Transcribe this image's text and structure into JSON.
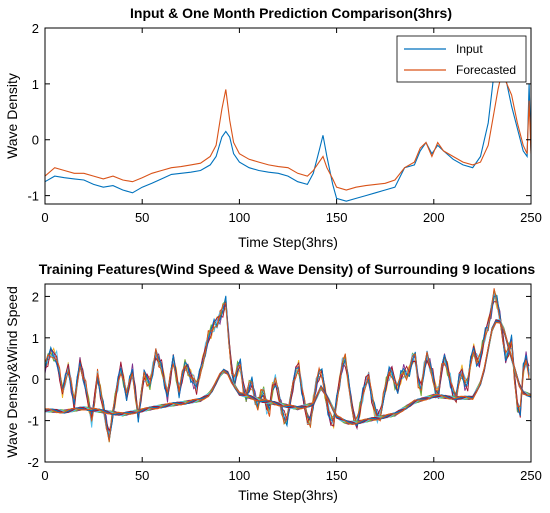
{
  "chart_data": [
    {
      "type": "line",
      "title": "Input & One Month Prediction Comparison(3hrs)",
      "xlabel": "Time Step(3hrs)",
      "ylabel": "Wave Density",
      "xlim": [
        0,
        250
      ],
      "ylim": [
        -1.15,
        2
      ],
      "xticks": [
        0,
        50,
        100,
        150,
        200,
        250
      ],
      "yticks": [
        -1,
        0,
        1,
        2
      ],
      "grid": false,
      "legend_position": "top-right",
      "series": [
        {
          "name": "Input",
          "color": "#0072BD",
          "points": [
            [
              0,
              -0.75
            ],
            [
              5,
              -0.65
            ],
            [
              10,
              -0.68
            ],
            [
              15,
              -0.7
            ],
            [
              20,
              -0.72
            ],
            [
              25,
              -0.8
            ],
            [
              30,
              -0.85
            ],
            [
              35,
              -0.82
            ],
            [
              40,
              -0.9
            ],
            [
              45,
              -0.95
            ],
            [
              50,
              -0.85
            ],
            [
              55,
              -0.78
            ],
            [
              60,
              -0.7
            ],
            [
              65,
              -0.62
            ],
            [
              70,
              -0.6
            ],
            [
              75,
              -0.58
            ],
            [
              80,
              -0.55
            ],
            [
              85,
              -0.45
            ],
            [
              88,
              -0.3
            ],
            [
              91,
              0.05
            ],
            [
              93,
              0.15
            ],
            [
              95,
              0.05
            ],
            [
              97,
              -0.25
            ],
            [
              100,
              -0.4
            ],
            [
              105,
              -0.5
            ],
            [
              110,
              -0.55
            ],
            [
              115,
              -0.58
            ],
            [
              120,
              -0.6
            ],
            [
              125,
              -0.65
            ],
            [
              130,
              -0.75
            ],
            [
              135,
              -0.8
            ],
            [
              138,
              -0.6
            ],
            [
              141,
              -0.2
            ],
            [
              143,
              0.08
            ],
            [
              145,
              -0.3
            ],
            [
              148,
              -0.8
            ],
            [
              150,
              -1.05
            ],
            [
              155,
              -1.1
            ],
            [
              160,
              -1.05
            ],
            [
              165,
              -1.0
            ],
            [
              170,
              -0.95
            ],
            [
              175,
              -0.9
            ],
            [
              180,
              -0.85
            ],
            [
              185,
              -0.5
            ],
            [
              190,
              -0.45
            ],
            [
              193,
              -0.2
            ],
            [
              196,
              -0.05
            ],
            [
              199,
              -0.25
            ],
            [
              202,
              -0.1
            ],
            [
              205,
              -0.2
            ],
            [
              210,
              -0.35
            ],
            [
              215,
              -0.45
            ],
            [
              220,
              -0.5
            ],
            [
              224,
              -0.3
            ],
            [
              228,
              0.3
            ],
            [
              231,
              1.2
            ],
            [
              233,
              1.8
            ],
            [
              235,
              1.6
            ],
            [
              237,
              1.1
            ],
            [
              240,
              0.6
            ],
            [
              243,
              0.2
            ],
            [
              246,
              -0.2
            ],
            [
              248,
              -0.3
            ],
            [
              249,
              1.0
            ],
            [
              250,
              -0.2
            ]
          ]
        },
        {
          "name": "Forecasted",
          "color": "#D95319",
          "points": [
            [
              0,
              -0.65
            ],
            [
              5,
              -0.5
            ],
            [
              10,
              -0.55
            ],
            [
              15,
              -0.6
            ],
            [
              20,
              -0.6
            ],
            [
              25,
              -0.65
            ],
            [
              30,
              -0.7
            ],
            [
              35,
              -0.65
            ],
            [
              40,
              -0.72
            ],
            [
              45,
              -0.75
            ],
            [
              50,
              -0.68
            ],
            [
              55,
              -0.6
            ],
            [
              60,
              -0.55
            ],
            [
              65,
              -0.5
            ],
            [
              70,
              -0.48
            ],
            [
              75,
              -0.45
            ],
            [
              80,
              -0.42
            ],
            [
              85,
              -0.3
            ],
            [
              88,
              -0.1
            ],
            [
              91,
              0.55
            ],
            [
              93,
              0.9
            ],
            [
              95,
              0.35
            ],
            [
              97,
              -0.05
            ],
            [
              100,
              -0.25
            ],
            [
              105,
              -0.35
            ],
            [
              110,
              -0.4
            ],
            [
              115,
              -0.45
            ],
            [
              120,
              -0.48
            ],
            [
              125,
              -0.5
            ],
            [
              130,
              -0.6
            ],
            [
              135,
              -0.65
            ],
            [
              138,
              -0.55
            ],
            [
              141,
              -0.4
            ],
            [
              143,
              -0.3
            ],
            [
              145,
              -0.5
            ],
            [
              148,
              -0.7
            ],
            [
              150,
              -0.85
            ],
            [
              155,
              -0.9
            ],
            [
              160,
              -0.85
            ],
            [
              165,
              -0.82
            ],
            [
              170,
              -0.8
            ],
            [
              175,
              -0.78
            ],
            [
              180,
              -0.72
            ],
            [
              185,
              -0.5
            ],
            [
              190,
              -0.4
            ],
            [
              193,
              -0.15
            ],
            [
              196,
              -0.05
            ],
            [
              199,
              -0.3
            ],
            [
              202,
              -0.05
            ],
            [
              205,
              -0.2
            ],
            [
              210,
              -0.3
            ],
            [
              215,
              -0.4
            ],
            [
              220,
              -0.45
            ],
            [
              224,
              -0.4
            ],
            [
              228,
              -0.1
            ],
            [
              231,
              0.5
            ],
            [
              233,
              0.9
            ],
            [
              235,
              1.2
            ],
            [
              237,
              1.05
            ],
            [
              240,
              0.8
            ],
            [
              243,
              0.3
            ],
            [
              246,
              -0.1
            ],
            [
              248,
              -0.25
            ],
            [
              249,
              0.7
            ],
            [
              250,
              -0.25
            ]
          ]
        }
      ]
    },
    {
      "type": "line",
      "title": "Training Features(Wind Speed & Wave Density) of Surrounding 9 locations",
      "xlabel": "Time Step(3hrs)",
      "ylabel": "Wave Density&Wind Speed",
      "xlim": [
        0,
        250
      ],
      "ylim": [
        -2,
        2.3
      ],
      "xticks": [
        0,
        50,
        100,
        150,
        200,
        250
      ],
      "yticks": [
        -2,
        -1,
        0,
        1,
        2
      ],
      "grid": false,
      "wind_base": [
        [
          0,
          0.3
        ],
        [
          3,
          0.65
        ],
        [
          6,
          0.5
        ],
        [
          9,
          -0.3
        ],
        [
          12,
          0.3
        ],
        [
          15,
          -0.6
        ],
        [
          18,
          0.4
        ],
        [
          21,
          -0.2
        ],
        [
          24,
          -1.0
        ],
        [
          27,
          0.1
        ],
        [
          30,
          -0.7
        ],
        [
          33,
          -1.4
        ],
        [
          36,
          -0.5
        ],
        [
          39,
          0.3
        ],
        [
          42,
          -0.4
        ],
        [
          45,
          0.2
        ],
        [
          48,
          -0.9
        ],
        [
          51,
          0.1
        ],
        [
          54,
          -0.1
        ],
        [
          57,
          0.6
        ],
        [
          60,
          0.3
        ],
        [
          63,
          -0.4
        ],
        [
          66,
          0.5
        ],
        [
          69,
          -0.3
        ],
        [
          72,
          0.35
        ],
        [
          75,
          0.1
        ],
        [
          78,
          -0.2
        ],
        [
          81,
          0.4
        ],
        [
          84,
          1.0
        ],
        [
          87,
          1.3
        ],
        [
          90,
          1.5
        ],
        [
          93,
          1.85
        ],
        [
          95,
          0.7
        ],
        [
          97,
          -0.2
        ],
        [
          100,
          0.5
        ],
        [
          103,
          -0.5
        ],
        [
          106,
          0.0
        ],
        [
          109,
          -0.7
        ],
        [
          112,
          -0.2
        ],
        [
          115,
          -0.9
        ],
        [
          118,
          0.1
        ],
        [
          121,
          -0.6
        ],
        [
          124,
          -1.1
        ],
        [
          127,
          -0.3
        ],
        [
          130,
          0.45
        ],
        [
          133,
          -0.5
        ],
        [
          136,
          -1.2
        ],
        [
          139,
          -0.2
        ],
        [
          142,
          0.3
        ],
        [
          145,
          -0.6
        ],
        [
          148,
          -1.2
        ],
        [
          151,
          -0.2
        ],
        [
          154,
          0.65
        ],
        [
          157,
          -0.4
        ],
        [
          160,
          -1.2
        ],
        [
          163,
          -0.5
        ],
        [
          166,
          0.2
        ],
        [
          169,
          -0.7
        ],
        [
          172,
          -1.0
        ],
        [
          175,
          -0.2
        ],
        [
          178,
          0.3
        ],
        [
          181,
          -0.3
        ],
        [
          184,
          0.2
        ],
        [
          187,
          0.1
        ],
        [
          190,
          0.7
        ],
        [
          193,
          -0.4
        ],
        [
          196,
          0.6
        ],
        [
          199,
          0.2
        ],
        [
          202,
          -0.5
        ],
        [
          205,
          0.6
        ],
        [
          208,
          0.1
        ],
        [
          211,
          -0.6
        ],
        [
          214,
          0.3
        ],
        [
          217,
          -0.3
        ],
        [
          220,
          0.8
        ],
        [
          223,
          0.3
        ],
        [
          226,
          1.0
        ],
        [
          229,
          1.5
        ],
        [
          231,
          2.05
        ],
        [
          233,
          1.8
        ],
        [
          235,
          1.2
        ],
        [
          237,
          0.5
        ],
        [
          240,
          0.9
        ],
        [
          242,
          -0.2
        ],
        [
          244,
          -1.1
        ],
        [
          246,
          0.2
        ],
        [
          248,
          0.6
        ],
        [
          250,
          -0.3
        ]
      ],
      "wave_base": [
        [
          0,
          -0.75
        ],
        [
          10,
          -0.78
        ],
        [
          20,
          -0.7
        ],
        [
          30,
          -0.78
        ],
        [
          40,
          -0.85
        ],
        [
          50,
          -0.75
        ],
        [
          60,
          -0.65
        ],
        [
          70,
          -0.58
        ],
        [
          80,
          -0.5
        ],
        [
          85,
          -0.35
        ],
        [
          90,
          0.1
        ],
        [
          93,
          0.25
        ],
        [
          96,
          -0.05
        ],
        [
          100,
          -0.35
        ],
        [
          110,
          -0.5
        ],
        [
          120,
          -0.6
        ],
        [
          130,
          -0.7
        ],
        [
          138,
          -0.6
        ],
        [
          142,
          -0.2
        ],
        [
          145,
          -0.4
        ],
        [
          150,
          -0.9
        ],
        [
          155,
          -1.05
        ],
        [
          160,
          -1.05
        ],
        [
          170,
          -0.95
        ],
        [
          180,
          -0.85
        ],
        [
          190,
          -0.55
        ],
        [
          200,
          -0.4
        ],
        [
          210,
          -0.45
        ],
        [
          220,
          -0.45
        ],
        [
          225,
          0.0
        ],
        [
          230,
          1.2
        ],
        [
          233,
          1.5
        ],
        [
          236,
          1.2
        ],
        [
          240,
          0.5
        ],
        [
          245,
          -0.3
        ],
        [
          250,
          -0.4
        ]
      ],
      "line_colors": [
        "#0072BD",
        "#D95319",
        "#EDB120",
        "#7E2F8E",
        "#77AC30",
        "#4DBEEE",
        "#A2142F",
        "#0072BD",
        "#D95319"
      ]
    }
  ]
}
